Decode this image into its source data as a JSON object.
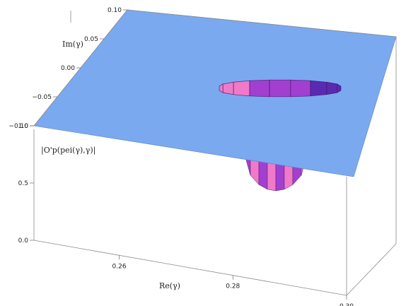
{
  "chart_data": {
    "type": "surface3d",
    "title": "",
    "xlabel": "Re(γ)",
    "ylabel": "Im(γ)",
    "zlabel": "|O'p(pei(γ),γ)|",
    "xlim": [
      0.245,
      0.3
    ],
    "ylim": [
      -0.1,
      0.1
    ],
    "zlim": [
      0.0,
      1.0
    ],
    "x_ticks": [
      "0.26",
      "0.28",
      "0.30"
    ],
    "y_ticks": [
      "0.10",
      "0.05",
      "0.00",
      "−0.05",
      "−0.10"
    ],
    "z_ticks": [
      "0.0",
      "0.5",
      "1.0"
    ],
    "surface": {
      "description": "plateau at z = 1.0 with a narrow elongated dip",
      "plateau_level": 1.0,
      "dip_center": [
        0.28,
        -0.04
      ],
      "dip_min": 0.4
    },
    "plane_color": "#7aa9f0",
    "dip_colors": [
      "#f07ac8",
      "#a33fd0",
      "#5a2ab0"
    ]
  }
}
